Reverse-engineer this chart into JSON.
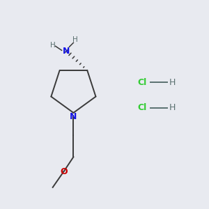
{
  "background_color": "#e8eaf0",
  "bond_color": "#3a3a3a",
  "N_color": "#1414e6",
  "O_color": "#cc0000",
  "Cl_color": "#33cc33",
  "H_color": "#5a7070",
  "figsize": [
    3.0,
    3.0
  ],
  "dpi": 100,
  "xlim": [
    0.0,
    3.0
  ],
  "ylim": [
    0.0,
    3.0
  ]
}
